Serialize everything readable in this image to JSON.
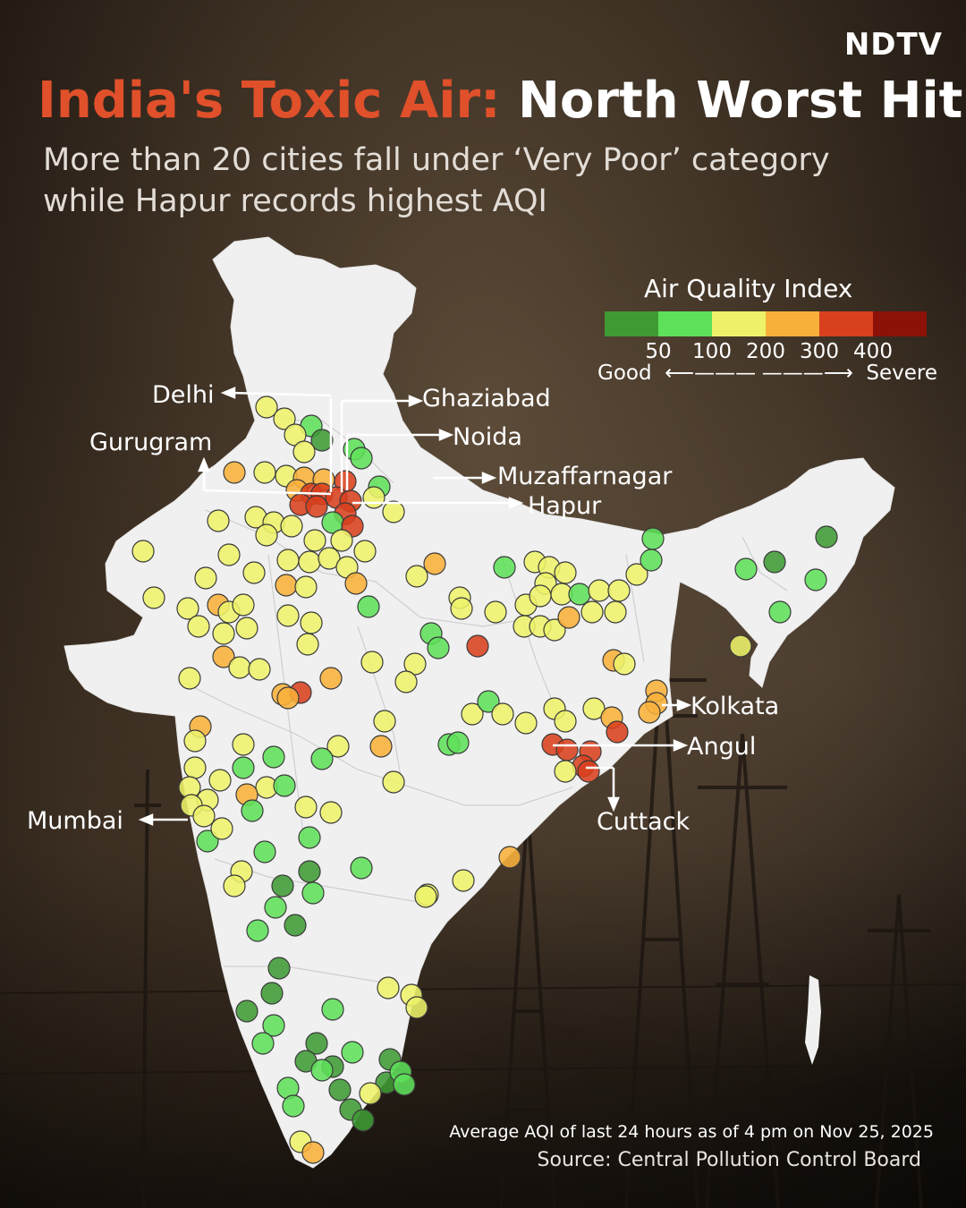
{
  "brand": {
    "logo": "NDTV"
  },
  "header": {
    "title_highlight": "India's Toxic Air:",
    "title_rest": "North Worst Hit",
    "subtitle": "More than 20 cities fall under ‘Very Poor’ category while Hapur records highest AQI"
  },
  "legend": {
    "title": "Air Quality Index",
    "colors": [
      "#3f9a34",
      "#5ee05a",
      "#eef26a",
      "#f8b03a",
      "#d8401e",
      "#8c1208"
    ],
    "ticks": [
      "50",
      "100",
      "200",
      "300",
      "400"
    ],
    "low_label": "Good",
    "high_label": "Severe"
  },
  "labels": {
    "delhi": "Delhi",
    "ghaziabad": "Ghaziabad",
    "gurugram": "Gurugram",
    "noida": "Noida",
    "muzaffarnagar": "Muzaffarnagar",
    "hapur": "Hapur",
    "kolkata": "Kolkata",
    "angul": "Angul",
    "mumbai": "Mumbai",
    "cuttack": "Cuttack"
  },
  "footer": {
    "note": "Average AQI of last 24 hours as of 4 pm on Nov 25, 2025",
    "source": "Source: Central Pollution Control Board"
  }
}
